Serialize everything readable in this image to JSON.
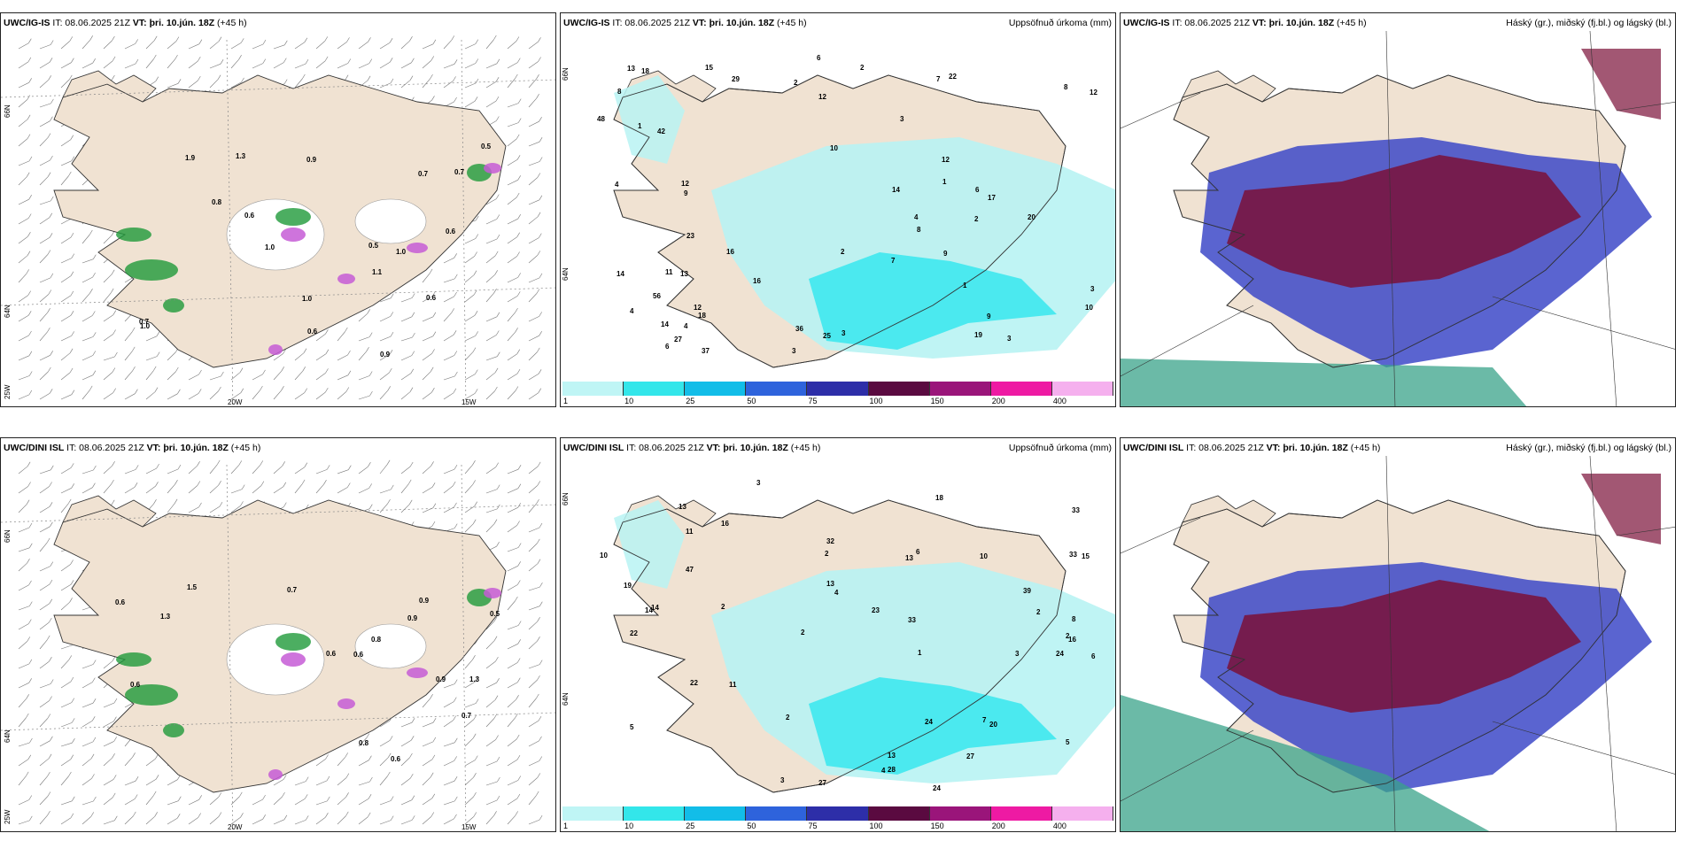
{
  "panels": [
    {
      "model": "UWC/IG-IS",
      "it": "IT: 08.06.2025 21Z",
      "vt_label": "VT:",
      "vt": "þri. 10.jún. 18Z",
      "lead": "(+45 h)",
      "right": ""
    },
    {
      "model": "UWC/IG-IS",
      "it": "IT: 08.06.2025 21Z",
      "vt_label": "VT:",
      "vt": "þri. 10.jún. 18Z",
      "lead": "(+45 h)",
      "right": "Uppsöfnuð úrkoma (mm)"
    },
    {
      "model": "UWC/IG-IS",
      "it": "IT: 08.06.2025 21Z",
      "vt_label": "VT:",
      "vt": "þri. 10.jún. 18Z",
      "lead": "(+45 h)",
      "right": "Háský (gr.), miðský (fj.bl.) og lágský (bl.)"
    },
    {
      "model": "UWC/DINI ISL",
      "it": "IT: 08.06.2025 21Z",
      "vt_label": "VT:",
      "vt": "þri. 10.jún. 18Z",
      "lead": "(+45 h)",
      "right": ""
    },
    {
      "model": "UWC/DINI ISL",
      "it": "IT: 08.06.2025 21Z",
      "vt_label": "VT:",
      "vt": "þri. 10.jún. 18Z",
      "lead": "(+45 h)",
      "right": "Uppsöfnuð úrkoma (mm)"
    },
    {
      "model": "UWC/DINI ISL",
      "it": "IT: 08.06.2025 21Z",
      "vt_label": "VT:",
      "vt": "þri. 10.jún. 18Z",
      "lead": "(+45 h)",
      "right": "Háský (gr.), miðský (fj.bl.) og lágský (bl.)"
    }
  ],
  "axes": {
    "lat66": "66N",
    "lat64": "64N",
    "lon25": "25W",
    "lon20": "20W",
    "lon15": "15W"
  },
  "colorbar": {
    "ticks": [
      "1",
      "10",
      "25",
      "50",
      "75",
      "100",
      "150",
      "200",
      "400"
    ],
    "colors": [
      "#bff5f5",
      "#33e6ea",
      "#12bde8",
      "#2e63dc",
      "#2d2ea8",
      "#5a0a40",
      "#9a157a",
      "#ee1aa3",
      "#f5b0ee"
    ]
  },
  "precip_ig": [
    "2",
    "2",
    "3",
    "4",
    "1",
    "6",
    "3",
    "1",
    "3",
    "4",
    "3",
    "3",
    "9",
    "7",
    "9",
    "12",
    "8",
    "13",
    "7",
    "14",
    "22",
    "16",
    "18",
    "14",
    "12",
    "10",
    "6",
    "4",
    "12",
    "8",
    "2",
    "4",
    "48",
    "56",
    "37",
    "29",
    "25",
    "15",
    "18",
    "42",
    "12",
    "17",
    "12",
    "20",
    "9",
    "19",
    "23",
    "27",
    "36",
    "16",
    "2",
    "1",
    "6",
    "8",
    "10",
    "13",
    "11",
    "14"
  ],
  "precip_dini": [
    "2",
    "2",
    "2",
    "3",
    "4",
    "3",
    "2",
    "1",
    "4",
    "5",
    "2",
    "3",
    "6",
    "13",
    "16",
    "13",
    "14",
    "20",
    "13",
    "10",
    "11",
    "22",
    "18",
    "27",
    "33",
    "32",
    "24",
    "47",
    "24",
    "33",
    "19",
    "24",
    "39",
    "28",
    "27",
    "15",
    "14",
    "11",
    "6",
    "33",
    "23",
    "22",
    "13",
    "2",
    "5",
    "8",
    "10",
    "16",
    "7"
  ],
  "barb_ig": [
    "0.6",
    "0.6",
    "0.5",
    "1.0",
    "0.7",
    "0.6",
    "0.5",
    "1.1",
    "0.9",
    "1.0",
    "1.3",
    "1.0",
    "0.9",
    "0.7",
    "0.6",
    "0.7",
    "0.8",
    "1.9",
    "1.0"
  ],
  "barb_dini": [
    "0.8",
    "0.8",
    "0.9",
    "0.6",
    "1.3",
    "0.6",
    "0.7",
    "0.5",
    "1.5",
    "0.9",
    "1.3",
    "0.6",
    "0.9",
    "0.6",
    "0.7",
    "0.6"
  ],
  "colors": {
    "land": "#f0e2d2",
    "cyan_light": "#b8f3f3",
    "cyan": "#3ee8ee",
    "blue": "#3d49c8",
    "maroon": "#7a1038",
    "teal": "#3aa38a",
    "green": "#1f9a3a",
    "magenta": "#c55cd6"
  }
}
